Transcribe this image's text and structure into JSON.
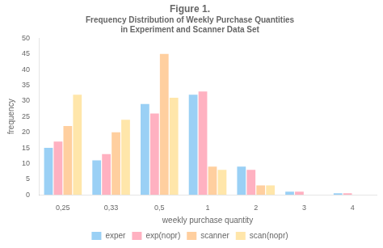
{
  "chart_data": {
    "type": "bar",
    "title": "Figure 1.",
    "subtitle": [
      "Frequency Distribution of Weekly Purchase Quantities",
      "in Experiment and Scanner Data Set"
    ],
    "x_label": "weekly purchase quantity",
    "y_label": "frequency",
    "categories": [
      "0,25",
      "0,33",
      "0,5",
      "1",
      "2",
      "3",
      "4"
    ],
    "series": [
      {
        "name": "exper",
        "values": [
          15,
          11,
          29,
          32,
          9,
          1,
          0.5
        ]
      },
      {
        "name": "exp(nopr)",
        "values": [
          17,
          13,
          26,
          33,
          8,
          1,
          0.5
        ]
      },
      {
        "name": "scanner",
        "values": [
          22,
          20,
          45,
          9,
          3,
          0,
          0
        ]
      },
      {
        "name": "scan(nopr)",
        "values": [
          32,
          24,
          31,
          8,
          3,
          0,
          0
        ]
      }
    ],
    "ylim": [
      0,
      50
    ],
    "yticks": [
      0,
      5,
      10,
      15,
      20,
      25,
      30,
      35,
      40,
      45,
      50
    ],
    "grid": false,
    "legend": "bottom"
  }
}
